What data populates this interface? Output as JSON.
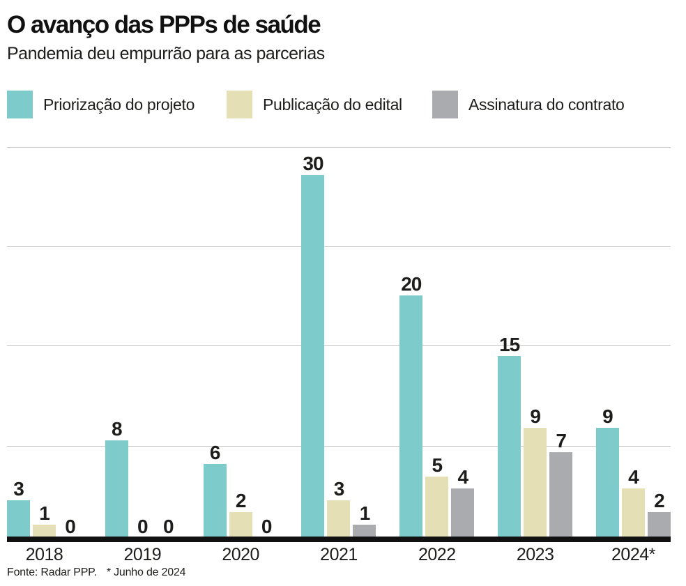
{
  "header": {
    "title": "O avanço das PPPs de saúde",
    "subtitle": "Pandemia deu empurrão para as parcerias"
  },
  "legend": [
    {
      "label": "Priorização do projeto",
      "color": "#7dcccb"
    },
    {
      "label": "Publicação do edital",
      "color": "#e5dfb5"
    },
    {
      "label": "Assinatura do contrato",
      "color": "#a9abae"
    }
  ],
  "chart_data": {
    "type": "bar",
    "title": "O avanço das PPPs de saúde",
    "subtitle": "Pandemia deu empurrão para as parcerias",
    "categories": [
      "2018",
      "2019",
      "2020",
      "2021",
      "2022",
      "2023",
      "2024*"
    ],
    "series": [
      {
        "name": "Priorização do projeto",
        "color": "#7dcccb",
        "values": [
          3,
          8,
          6,
          30,
          20,
          15,
          9
        ]
      },
      {
        "name": "Publicação do edital",
        "color": "#e5dfb5",
        "values": [
          1,
          0,
          2,
          3,
          5,
          9,
          4
        ]
      },
      {
        "name": "Assinatura do contrato",
        "color": "#a9abae",
        "values": [
          0,
          0,
          0,
          1,
          4,
          7,
          2
        ]
      }
    ],
    "xlabel": "",
    "ylabel": "",
    "ylim": [
      0,
      32.4
    ],
    "grid": "horizontal",
    "value_labels": true,
    "legend_position": "top",
    "axis_color": "#111111",
    "gridline_color": "#c9c9c9"
  },
  "footer": {
    "source": "Fonte: Radar PPP.",
    "note": "* Junho de 2024"
  }
}
